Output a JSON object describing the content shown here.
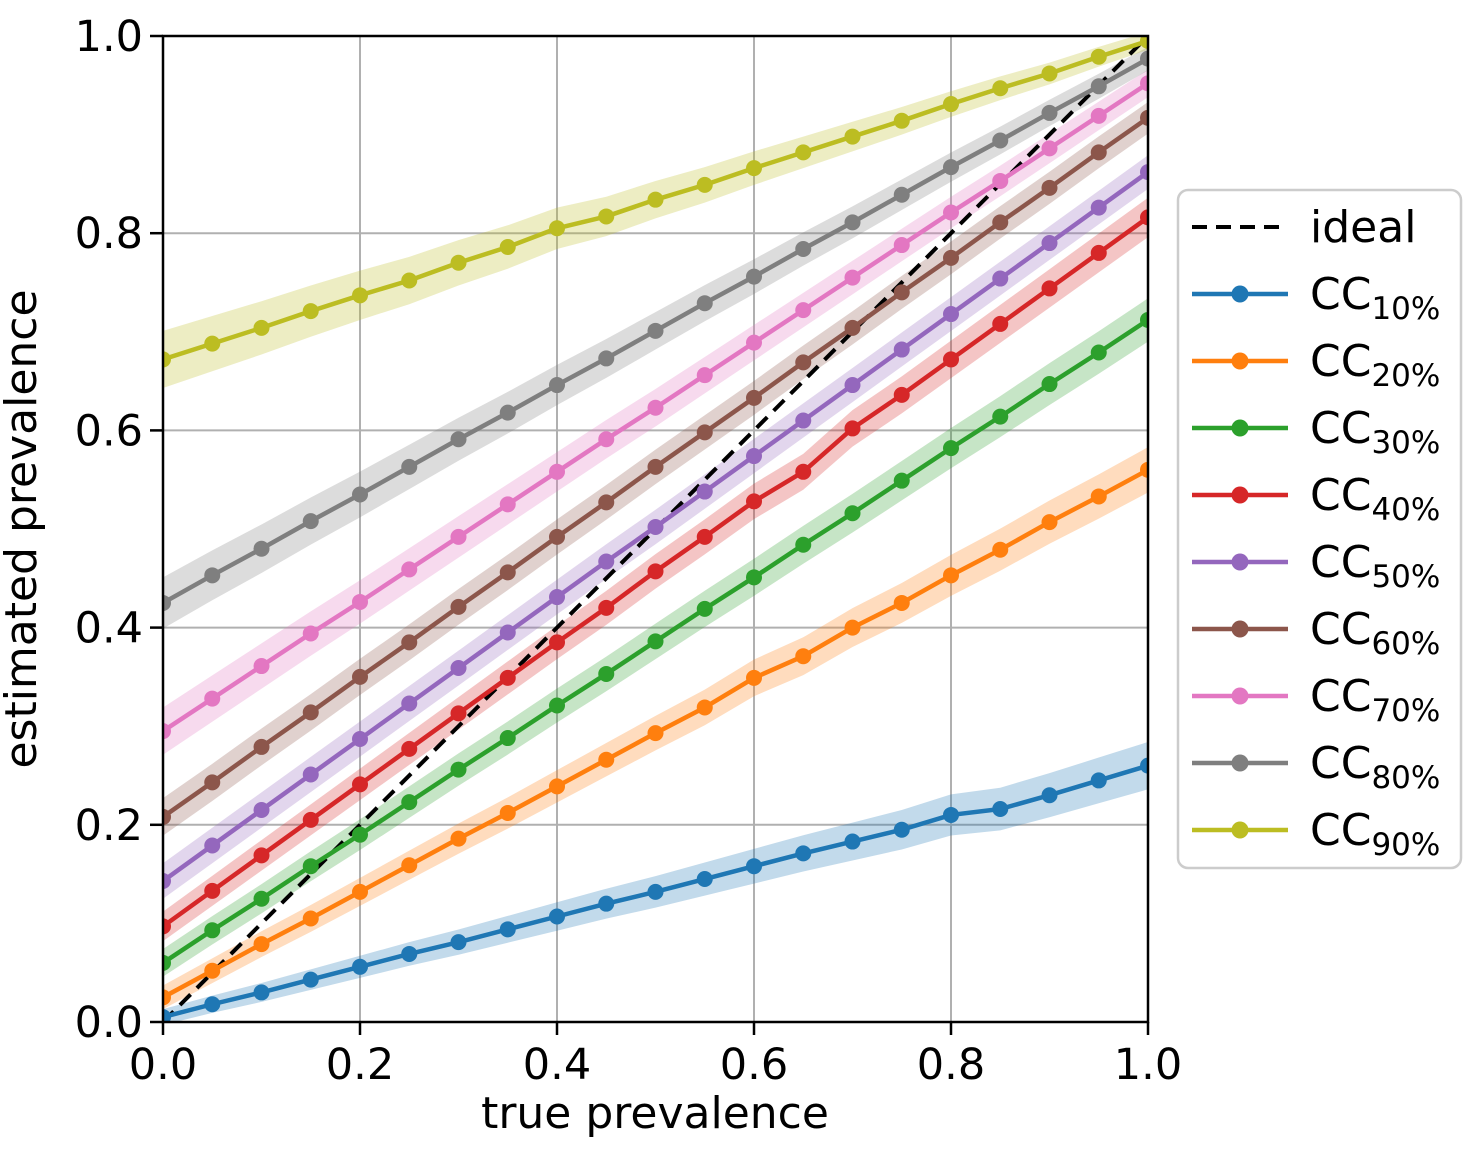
{
  "chart_data": {
    "type": "line",
    "title": "",
    "xlabel": "true prevalence",
    "ylabel": "estimated prevalence",
    "xlim": [
      0.0,
      1.0
    ],
    "ylim": [
      0.0,
      1.0
    ],
    "xticks": [
      "0.0",
      "0.2",
      "0.4",
      "0.6",
      "0.8",
      "1.0"
    ],
    "yticks": [
      "0.0",
      "0.2",
      "0.4",
      "0.6",
      "0.8",
      "1.0"
    ],
    "grid": true,
    "grid_color": "#b0b0b0",
    "legend": {
      "position": "outside-right",
      "border_color": "#cccccc"
    },
    "x": [
      0.0,
      0.05,
      0.1,
      0.15,
      0.2,
      0.25,
      0.3,
      0.35,
      0.4,
      0.45,
      0.5,
      0.55,
      0.6,
      0.65,
      0.7,
      0.75,
      0.8,
      0.85,
      0.9,
      0.95,
      1.0
    ],
    "reference_line": {
      "label": "ideal",
      "style": "dashed",
      "color": "#000000",
      "from": [
        0,
        0
      ],
      "to": [
        1,
        1
      ]
    },
    "series": [
      {
        "label_main": "CC",
        "label_sub": "10%",
        "color": "#1f77b4",
        "band_halfwidth_start": 0.008,
        "band_halfwidth_end": 0.024,
        "values": [
          0.005,
          0.018,
          0.03,
          0.043,
          0.056,
          0.069,
          0.081,
          0.094,
          0.107,
          0.12,
          0.132,
          0.145,
          0.158,
          0.171,
          0.183,
          0.195,
          0.21,
          0.216,
          0.23,
          0.245,
          0.26
        ]
      },
      {
        "label_main": "CC",
        "label_sub": "20%",
        "color": "#ff7f0e",
        "band_halfwidth_start": 0.012,
        "band_halfwidth_end": 0.023,
        "values": [
          0.025,
          0.052,
          0.079,
          0.105,
          0.132,
          0.159,
          0.186,
          0.212,
          0.239,
          0.266,
          0.293,
          0.319,
          0.349,
          0.371,
          0.4,
          0.425,
          0.453,
          0.479,
          0.507,
          0.533,
          0.56
        ]
      },
      {
        "label_main": "CC",
        "label_sub": "30%",
        "color": "#2ca02c",
        "band_halfwidth_start": 0.014,
        "band_halfwidth_end": 0.022,
        "values": [
          0.06,
          0.093,
          0.125,
          0.158,
          0.19,
          0.223,
          0.256,
          0.288,
          0.321,
          0.353,
          0.386,
          0.419,
          0.451,
          0.484,
          0.516,
          0.549,
          0.582,
          0.614,
          0.647,
          0.679,
          0.712
        ]
      },
      {
        "label_main": "CC",
        "label_sub": "40%",
        "color": "#d62728",
        "band_halfwidth_start": 0.015,
        "band_halfwidth_end": 0.02,
        "values": [
          0.097,
          0.133,
          0.169,
          0.205,
          0.241,
          0.277,
          0.313,
          0.349,
          0.385,
          0.42,
          0.457,
          0.492,
          0.528,
          0.558,
          0.602,
          0.636,
          0.672,
          0.708,
          0.744,
          0.78,
          0.816
        ]
      },
      {
        "label_main": "CC",
        "label_sub": "50%",
        "color": "#9467bd",
        "band_halfwidth_start": 0.018,
        "band_halfwidth_end": 0.017,
        "values": [
          0.143,
          0.179,
          0.215,
          0.251,
          0.287,
          0.323,
          0.359,
          0.395,
          0.431,
          0.467,
          0.502,
          0.538,
          0.574,
          0.61,
          0.646,
          0.682,
          0.718,
          0.754,
          0.79,
          0.826,
          0.862
        ]
      },
      {
        "label_main": "CC",
        "label_sub": "60%",
        "color": "#8c564b",
        "band_halfwidth_start": 0.019,
        "band_halfwidth_end": 0.016,
        "values": [
          0.208,
          0.243,
          0.279,
          0.314,
          0.35,
          0.385,
          0.421,
          0.456,
          0.492,
          0.527,
          0.563,
          0.598,
          0.633,
          0.669,
          0.704,
          0.74,
          0.775,
          0.811,
          0.846,
          0.882,
          0.917
        ]
      },
      {
        "label_main": "CC",
        "label_sub": "70%",
        "color": "#e377c2",
        "band_halfwidth_start": 0.024,
        "band_halfwidth_end": 0.014,
        "values": [
          0.295,
          0.328,
          0.361,
          0.394,
          0.426,
          0.459,
          0.492,
          0.525,
          0.558,
          0.591,
          0.623,
          0.656,
          0.689,
          0.722,
          0.755,
          0.788,
          0.821,
          0.853,
          0.886,
          0.919,
          0.952
        ]
      },
      {
        "label_main": "CC",
        "label_sub": "80%",
        "color": "#7f7f7f",
        "band_halfwidth_start": 0.026,
        "band_halfwidth_end": 0.012,
        "values": [
          0.425,
          0.453,
          0.48,
          0.508,
          0.535,
          0.563,
          0.591,
          0.618,
          0.646,
          0.673,
          0.701,
          0.729,
          0.756,
          0.784,
          0.811,
          0.839,
          0.867,
          0.894,
          0.922,
          0.949,
          0.977
        ]
      },
      {
        "label_main": "CC",
        "label_sub": "90%",
        "color": "#bcbd22",
        "band_halfwidth_start": 0.029,
        "band_halfwidth_end": 0.009,
        "values": [
          0.672,
          0.688,
          0.704,
          0.721,
          0.737,
          0.752,
          0.77,
          0.786,
          0.805,
          0.817,
          0.834,
          0.849,
          0.866,
          0.882,
          0.898,
          0.914,
          0.931,
          0.947,
          0.962,
          0.979,
          0.995
        ]
      }
    ]
  }
}
